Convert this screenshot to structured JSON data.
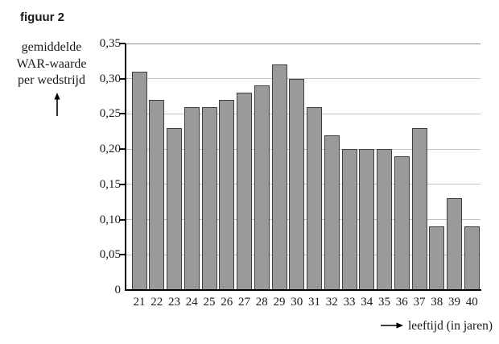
{
  "figure_title": "figuur 2",
  "chart_data": {
    "type": "bar",
    "title": "figuur 2",
    "categories": [
      "21",
      "22",
      "23",
      "24",
      "25",
      "26",
      "27",
      "28",
      "29",
      "30",
      "31",
      "32",
      "33",
      "34",
      "35",
      "36",
      "37",
      "38",
      "39",
      "40"
    ],
    "values": [
      0.31,
      0.27,
      0.23,
      0.26,
      0.26,
      0.27,
      0.28,
      0.29,
      0.32,
      0.3,
      0.26,
      0.22,
      0.2,
      0.2,
      0.2,
      0.19,
      0.23,
      0.09,
      0.13,
      0.09
    ],
    "xlabel": "leeftijd (in jaren)",
    "ylabel": "gemiddelde WAR-waarde per wedstrijd",
    "ylabel_lines": [
      "gemiddelde",
      "WAR-waarde",
      "per wedstrijd"
    ],
    "ylim": [
      0,
      0.35
    ],
    "grid": true,
    "legend": "none",
    "y_ticks": [
      {
        "value": 0.35,
        "label": "0,35"
      },
      {
        "value": 0.3,
        "label": "0,30"
      },
      {
        "value": 0.25,
        "label": "0,25"
      },
      {
        "value": 0.2,
        "label": "0,20"
      },
      {
        "value": 0.15,
        "label": "0,15"
      },
      {
        "value": 0.1,
        "label": "0,10"
      },
      {
        "value": 0.05,
        "label": "0,05"
      },
      {
        "value": 0,
        "label": "0"
      }
    ],
    "icons": {
      "y_axis_arrow": "up-arrow-icon",
      "x_axis_arrow": "right-arrow-icon"
    },
    "colors": {
      "background": "#ffffff",
      "bar_fill": "#9a9a9a",
      "bar_border": "#3f3f3f",
      "gridline": "#c3c3c3",
      "top_gridline": "#909090",
      "axis": "#000000",
      "text": "#1a1a1a"
    }
  }
}
